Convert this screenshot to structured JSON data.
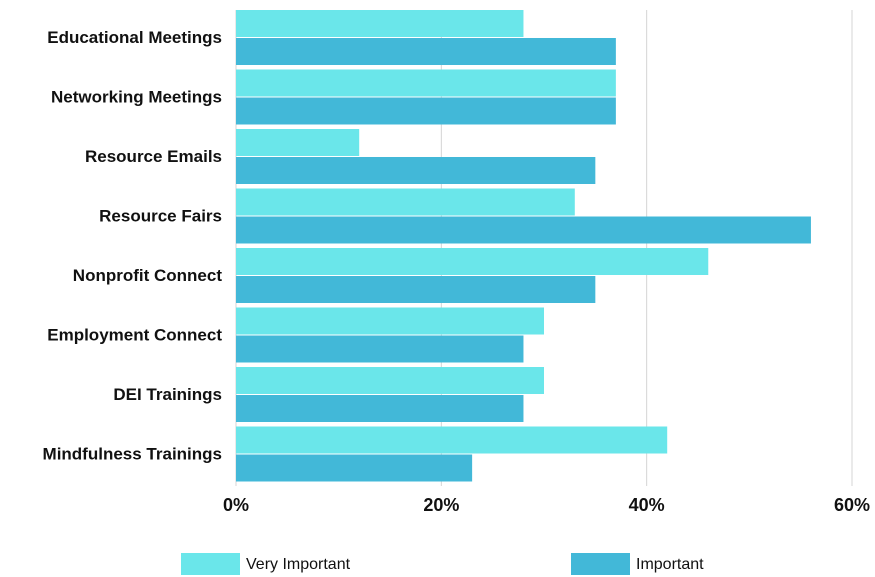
{
  "chart_data": {
    "type": "hbar",
    "categories": [
      "Educational Meetings",
      "Networking Meetings",
      "Resource Emails",
      "Resource Fairs",
      "Nonprofit Connect",
      "Employment Connect",
      "DEI Trainings",
      "Mindfulness Trainings"
    ],
    "series": [
      {
        "name": "Very Important",
        "color": "#6ae6ea",
        "values": [
          28,
          37,
          12,
          33,
          46,
          30,
          30,
          42
        ]
      },
      {
        "name": "Important",
        "color": "#42b8d8",
        "values": [
          37,
          37,
          35,
          56,
          35,
          28,
          28,
          23
        ]
      }
    ],
    "xlim": [
      0,
      60
    ],
    "xticks": [
      {
        "value": 0,
        "label": "0%"
      },
      {
        "value": 20,
        "label": "20%"
      },
      {
        "value": 40,
        "label": "40%"
      },
      {
        "value": 60,
        "label": "60%"
      }
    ],
    "grid": true,
    "legend": "bottom"
  }
}
